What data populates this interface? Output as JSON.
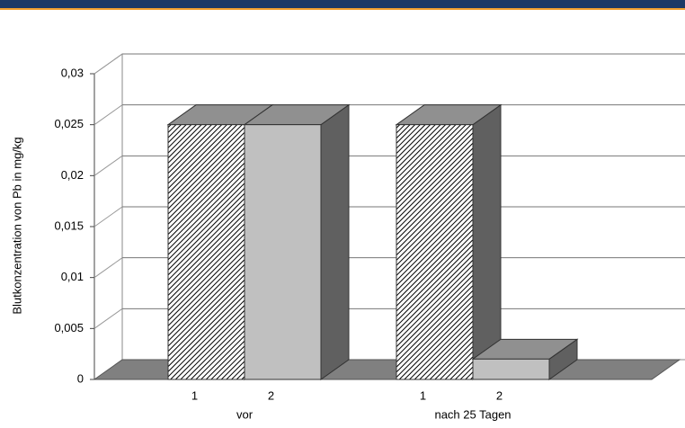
{
  "chart_data": {
    "type": "bar3d",
    "y_label": "Blutkonzentration von Pb in mg/kg",
    "categories": [
      "vor",
      "nach 25 Tagen"
    ],
    "bar_labels": [
      "1",
      "2"
    ],
    "series": [
      {
        "color": "#000000",
        "pattern": "hatch",
        "values": [
          0.025,
          0.025
        ]
      },
      {
        "color": "#c0c0c0",
        "values": [
          0.025,
          0.002
        ]
      }
    ],
    "ylim": [
      0,
      0.03
    ],
    "yticks": [
      0,
      {
        "value": 0.005,
        "label": "0,005"
      },
      {
        "value": 0.01,
        "label": "0,01"
      },
      {
        "value": 0.015,
        "label": "0,015"
      },
      {
        "value": 0.02,
        "label": "0,02"
      },
      {
        "value": 0.025,
        "label": "0,025"
      },
      {
        "value": 0.03,
        "label": "0,03"
      }
    ],
    "grid": true
  }
}
